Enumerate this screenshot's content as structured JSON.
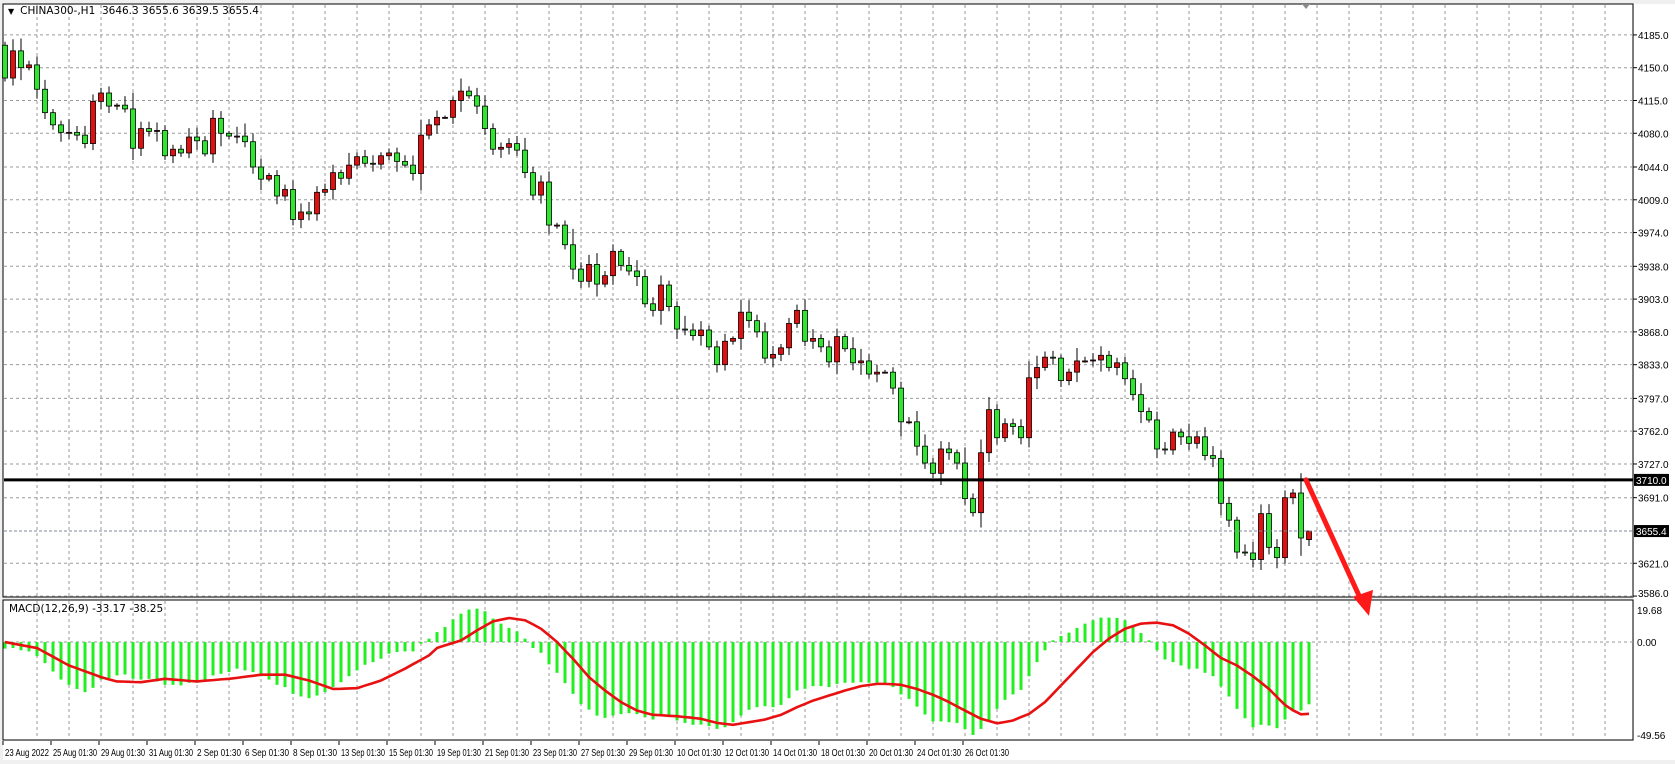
{
  "header": {
    "symbol": "CHINA300-,H1",
    "ohlc": "3646.3 3655.6 3639.5 3655.4"
  },
  "colors": {
    "bear_candle": "#2ee62e",
    "bull_candle": "#e01010",
    "macd_histogram": "#22ee22",
    "signal_line": "#e81010",
    "level_line": "#000000",
    "arrow": "#ff1a1a"
  },
  "chart_data": [
    {
      "type": "candlestick",
      "title": "CHINA300-,H1",
      "ylim": [
        3585,
        4218
      ],
      "grid": true,
      "y_ticks": [
        "4185.0",
        "4150.0",
        "4115.0",
        "4080.0",
        "4044.0",
        "4009.0",
        "3974.0",
        "3938.0",
        "3903.0",
        "3868.0",
        "3833.0",
        "3797.0",
        "3762.0",
        "3727.0",
        "3691.0",
        "3621.0",
        "3586.0"
      ],
      "x_labels": [
        "23 Aug 2022",
        "25 Aug 01:30",
        "29 Aug 01:30",
        "31 Aug 01:30",
        "2 Sep 01:30",
        "6 Sep 01:30",
        "8 Sep 01:30",
        "13 Sep 01:30",
        "15 Sep 01:30",
        "19 Sep 01:30",
        "21 Sep 01:30",
        "23 Sep 01:30",
        "27 Sep 01:30",
        "29 Sep 01:30",
        "10 Oct 01:30",
        "12 Oct 01:30",
        "14 Oct 01:30",
        "18 Oct 01:30",
        "20 Oct 01:30",
        "24 Oct 01:30",
        "26 Oct 01:30"
      ],
      "first_open": 4174,
      "last_candle": {
        "open": 3646.3,
        "high": 3655.6,
        "low": 3639.5,
        "close": 3655.4
      },
      "closes": [
        4139,
        4168,
        4150,
        4153,
        4127,
        4102,
        4089,
        4081,
        4081,
        4078,
        4069,
        4114,
        4123,
        4109,
        4110,
        4106,
        4064,
        4085,
        4082,
        4083,
        4056,
        4063,
        4059,
        4076,
        4072,
        4058,
        4096,
        4080,
        4077,
        4077,
        4071,
        4044,
        4031,
        4035,
        4013,
        4020,
        3988,
        3996,
        3994,
        4017,
        4020,
        4038,
        4032,
        4046,
        4055,
        4048,
        4047,
        4056,
        4059,
        4050,
        4046,
        4037,
        4078,
        4089,
        4097,
        4097,
        4115,
        4125,
        4120,
        4109,
        4085,
        4063,
        4065,
        4069,
        4062,
        4038,
        4014,
        4028,
        3982,
        3982,
        3961,
        3935,
        3922,
        3940,
        3919,
        3928,
        3954,
        3939,
        3933,
        3927,
        3898,
        3891,
        3918,
        3895,
        3871,
        3870,
        3864,
        3870,
        3852,
        3833,
        3858,
        3861,
        3889,
        3880,
        3868,
        3840,
        3844,
        3851,
        3877,
        3891,
        3858,
        3861,
        3852,
        3836,
        3863,
        3850,
        3835,
        3837,
        3823,
        3825,
        3825,
        3808,
        3772,
        3772,
        3746,
        3728,
        3717,
        3743,
        3739,
        3728,
        3690,
        3675,
        3739,
        3785,
        3755,
        3770,
        3767,
        3755,
        3819,
        3830,
        3841,
        3840,
        3816,
        3825,
        3837,
        3837,
        3838,
        3843,
        3830,
        3835,
        3818,
        3801,
        3783,
        3774,
        3743,
        3742,
        3761,
        3756,
        3749,
        3756,
        3736,
        3733,
        3685,
        3667,
        3633,
        3632,
        3625,
        3674,
        3638,
        3627,
        3691,
        3696,
        3648,
        3655.4
      ],
      "levels": [
        {
          "price": 3710.0,
          "label": "3710.0",
          "style": "solid-thick"
        },
        {
          "price": 3655.4,
          "label": "3655.4",
          "style": "dashed-current-price"
        }
      ],
      "annotation": {
        "type": "arrow",
        "direction": "down",
        "from_price": 3710,
        "color": "#ff1a1a"
      }
    },
    {
      "type": "bar+line",
      "title": "MACD(12,26,9)",
      "values_label": "-33.17 -38.25",
      "ylim": [
        -52.2,
        22.4
      ],
      "y_ticks": [
        "19.68",
        "0.00",
        "-49.56"
      ],
      "histogram": [
        -3.5,
        -3.2,
        -4.4,
        -5,
        -7.5,
        -11.2,
        -15.7,
        -20,
        -22.8,
        -25,
        -26.7,
        -24.4,
        -20,
        -19.2,
        -17.8,
        -17.3,
        -19.6,
        -20,
        -19.6,
        -21,
        -22.8,
        -22.8,
        -23.1,
        -21.7,
        -21.7,
        -20.5,
        -17.8,
        -16.9,
        -16,
        -14.2,
        -15.1,
        -16,
        -18.2,
        -20,
        -22.8,
        -24,
        -27.6,
        -29,
        -29.9,
        -28.5,
        -26.7,
        -24,
        -21.4,
        -18.2,
        -15.1,
        -12.1,
        -10.7,
        -8.9,
        -6.2,
        -5.3,
        -5,
        -5,
        -0.9,
        1.8,
        5.3,
        8,
        12.1,
        15.1,
        17.3,
        17.8,
        16.4,
        12.5,
        9.8,
        7.5,
        5.7,
        1.8,
        -3.2,
        -5.7,
        -11.9,
        -16.4,
        -21.9,
        -27.6,
        -33.1,
        -36,
        -39.2,
        -40.4,
        -39.2,
        -38.4,
        -37.9,
        -38.4,
        -40,
        -41.3,
        -39.2,
        -40,
        -41.8,
        -43.1,
        -44.1,
        -44,
        -44.8,
        -46.3,
        -45.4,
        -42.7,
        -39.2,
        -36.1,
        -34.7,
        -34.2,
        -34.7,
        -33.5,
        -29.9,
        -25.8,
        -24.9,
        -23.5,
        -23.5,
        -24,
        -22.3,
        -21.7,
        -21.7,
        -21.4,
        -21.7,
        -21.7,
        -22.3,
        -24,
        -27.9,
        -30.3,
        -34.4,
        -38.6,
        -42.3,
        -42.3,
        -42.7,
        -43.1,
        -46.3,
        -49.5,
        -46.3,
        -41.8,
        -35.6,
        -30.8,
        -27.9,
        -25.5,
        -18.2,
        -10.7,
        -4.4,
        0.9,
        3.2,
        5,
        7.5,
        9.8,
        11.6,
        13,
        13,
        12.8,
        11.6,
        8.5,
        4.8,
        0.9,
        -4.4,
        -9.3,
        -10.7,
        -12.5,
        -14.2,
        -14.2,
        -16.4,
        -18.2,
        -23.7,
        -29,
        -35.6,
        -40.6,
        -45.4,
        -44.1,
        -44.5,
        -45.9,
        -41.3,
        -37,
        -36.5,
        -33.17
      ],
      "signal": [
        0,
        -0.8,
        -1.6,
        -2.4,
        -3.2,
        -5.5,
        -7.8,
        -10.2,
        -12.5,
        -14,
        -15.6,
        -17.1,
        -18.7,
        -19.9,
        -21,
        -21.1,
        -21.3,
        -21.4,
        -20.8,
        -20.2,
        -19.6,
        -20,
        -20.3,
        -20.7,
        -21,
        -20.6,
        -20.3,
        -19.9,
        -19.6,
        -19.1,
        -18.5,
        -18,
        -17.4,
        -17.4,
        -17.4,
        -17.4,
        -18.4,
        -19.5,
        -20.5,
        -22,
        -23.5,
        -25,
        -24.9,
        -24.7,
        -24.6,
        -23.2,
        -21.9,
        -20.5,
        -18.4,
        -16.3,
        -14.2,
        -11.8,
        -9.5,
        -7.1,
        -3.2,
        -1.8,
        -0.5,
        0.9,
        3.5,
        6.2,
        8.6,
        11,
        11.9,
        12.8,
        12.2,
        11.6,
        9.4,
        7.1,
        3.6,
        0,
        -4.5,
        -8.9,
        -13.8,
        -18.7,
        -22.3,
        -25.8,
        -28.9,
        -32,
        -34.3,
        -36.5,
        -37.7,
        -38.8,
        -39,
        -39.3,
        -39.5,
        -40,
        -40.4,
        -40.9,
        -42,
        -43.1,
        -43.6,
        -44.1,
        -43.4,
        -42.7,
        -42,
        -41.3,
        -40,
        -38.8,
        -36.8,
        -34.7,
        -33,
        -31.2,
        -29.9,
        -28.5,
        -27.2,
        -25.8,
        -24.7,
        -23.5,
        -22.9,
        -22.3,
        -22.3,
        -22.5,
        -22.8,
        -23.9,
        -25,
        -26.6,
        -28.1,
        -30,
        -32,
        -34.3,
        -36.5,
        -38.7,
        -40.9,
        -42.1,
        -43.3,
        -42.6,
        -41.8,
        -40,
        -38.3,
        -35.2,
        -32,
        -27.6,
        -23.1,
        -18.7,
        -14.2,
        -9.8,
        -5.3,
        -1.8,
        1.8,
        4.5,
        7.1,
        8.5,
        9.8,
        10.1,
        10.3,
        9.6,
        8.9,
        6.7,
        4.4,
        1.3,
        -1.8,
        -5.2,
        -8.5,
        -10.5,
        -12.5,
        -15.4,
        -18.2,
        -21.6,
        -25,
        -29.3,
        -33.5,
        -36.4,
        -38.5,
        -38.25
      ]
    }
  ]
}
